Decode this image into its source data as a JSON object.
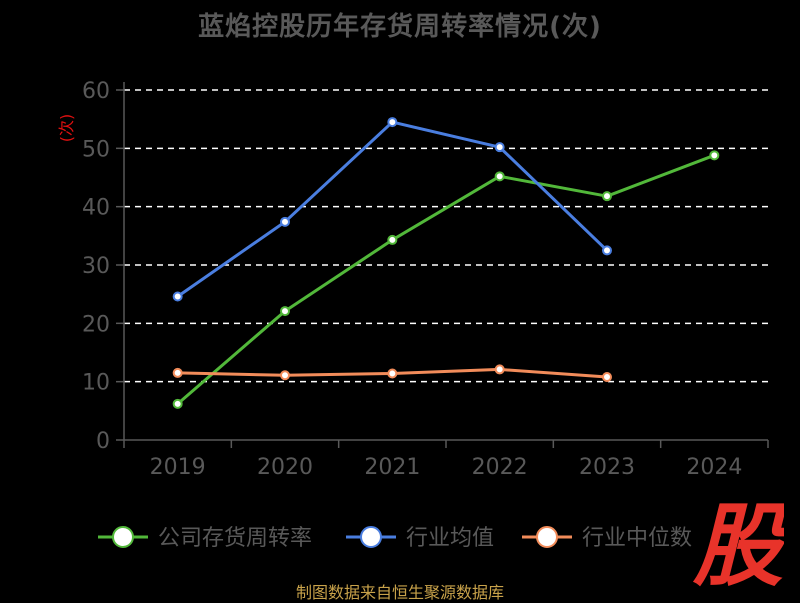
{
  "title": "蓝焰控股历年存货周转率情况(次)",
  "source_note": "制图数据来自恒生聚源数据库",
  "logo_text": "股",
  "colors": {
    "background": "#000000",
    "text": "#595959",
    "grid": "#ffffff",
    "axis": "#595959",
    "unit": "#e01010",
    "source": "#c8a24a",
    "logo": "#e8332a"
  },
  "chart_data": {
    "type": "line",
    "categories": [
      "2019",
      "2020",
      "2021",
      "2022",
      "2023",
      "2024"
    ],
    "ylim": [
      0,
      60
    ],
    "yticks": [
      0,
      10,
      20,
      30,
      40,
      50,
      60
    ],
    "ylabel": "(次)",
    "xlabel": "",
    "grid": true,
    "grid_style": "dashed",
    "legend_position": "bottom",
    "series": [
      {
        "name": "公司存货周转率",
        "color": "#52b83a",
        "values": [
          6.2,
          22.1,
          34.3,
          45.2,
          41.8,
          48.8
        ]
      },
      {
        "name": "行业均值",
        "color": "#4a7ee0",
        "values": [
          24.6,
          37.4,
          54.5,
          50.2,
          32.5,
          null
        ]
      },
      {
        "name": "行业中位数",
        "color": "#f28c5a",
        "values": [
          11.5,
          11.1,
          11.4,
          12.1,
          10.8,
          null
        ]
      }
    ]
  }
}
